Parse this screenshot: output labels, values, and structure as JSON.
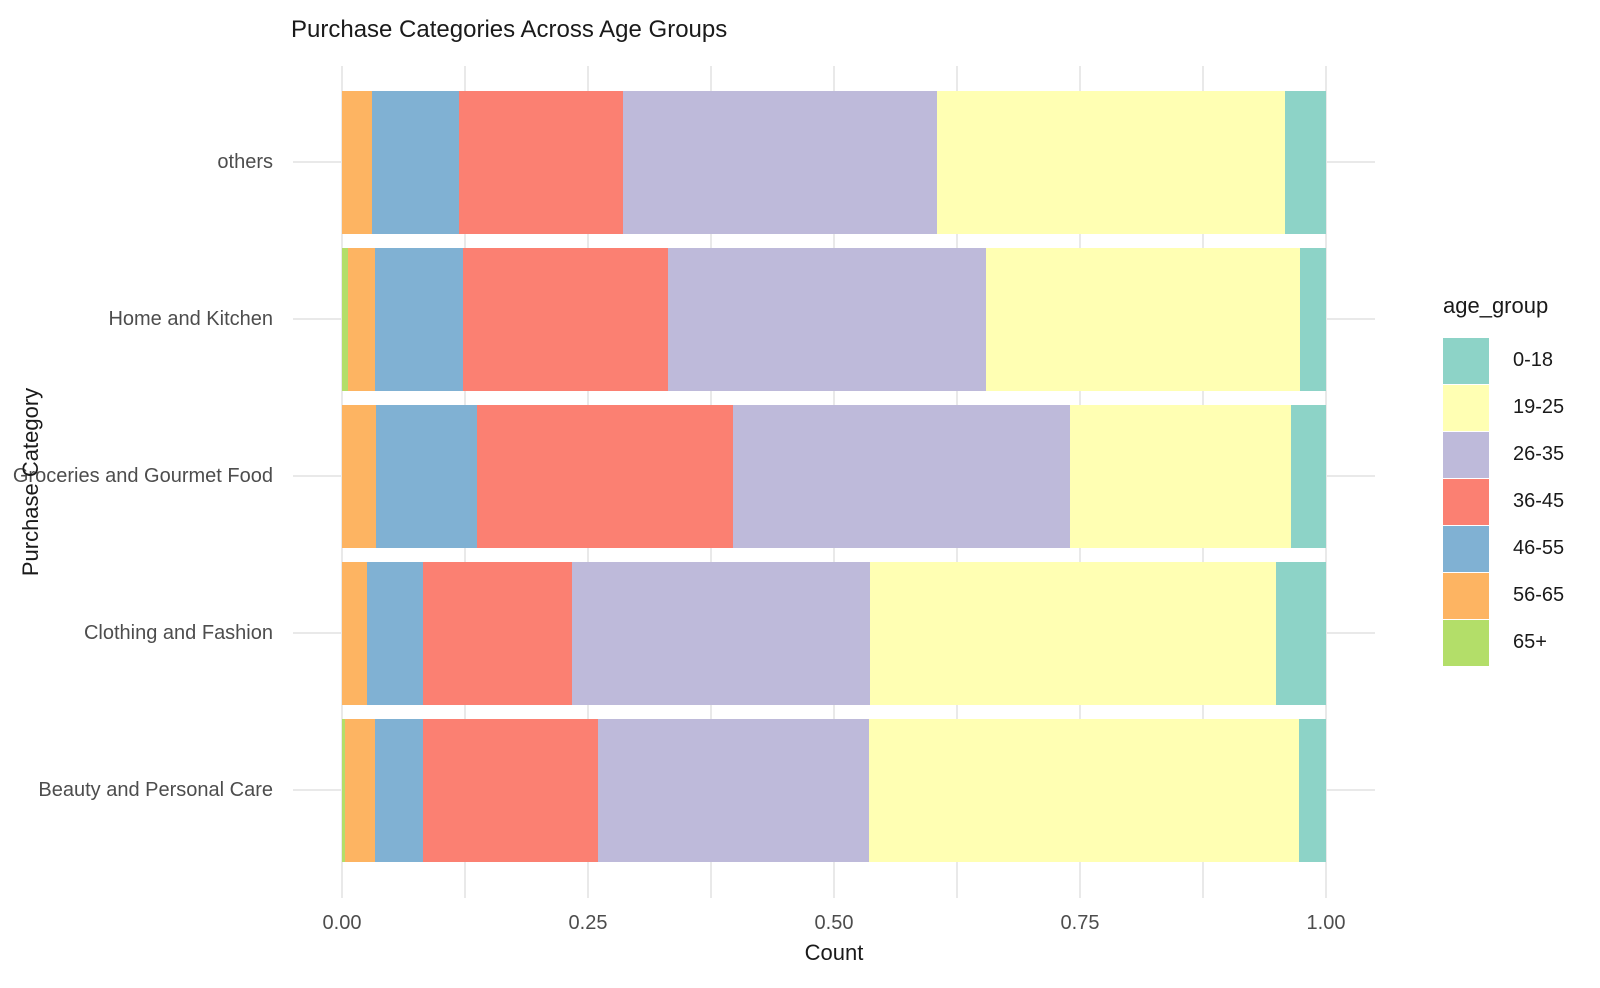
{
  "page": {
    "background_color": "#ffffff",
    "text_color_axis": "#4d4d4d",
    "text_color_title": "#1a1a1a",
    "gridline_color": "#e9e9e9"
  },
  "chart_data": {
    "type": "bar",
    "orientation": "horizontal",
    "stacked": true,
    "normalized": true,
    "title": "Purchase Categories Across Age Groups",
    "xlabel": "Count",
    "ylabel": "Purchase Category",
    "xlim": [
      0,
      1
    ],
    "x_tick_labels": [
      "0.00",
      "0.25",
      "0.50",
      "0.75",
      "1.00"
    ],
    "x_tick_values": [
      0,
      0.25,
      0.5,
      0.75,
      1.0
    ],
    "x_minor_tick_values": [
      0.125,
      0.375,
      0.625,
      0.875
    ],
    "grid": true,
    "categories_top_to_bottom": [
      "others",
      "Home and Kitchen",
      "Groceries and Gourmet Food",
      "Clothing and Fashion",
      "Beauty and Personal Care"
    ],
    "stack_order_left_to_right": [
      "65+",
      "56-65",
      "46-55",
      "36-45",
      "26-35",
      "19-25",
      "0-18"
    ],
    "legend": {
      "title": "age_group",
      "position": "right",
      "entries": [
        {
          "label": "0-18",
          "color": "#8dd3c7"
        },
        {
          "label": "19-25",
          "color": "#ffffb3"
        },
        {
          "label": "26-35",
          "color": "#bebada"
        },
        {
          "label": "36-45",
          "color": "#fb8072"
        },
        {
          "label": "46-55",
          "color": "#80b1d3"
        },
        {
          "label": "56-65",
          "color": "#fdb462"
        },
        {
          "label": "65+",
          "color": "#b3de69"
        }
      ]
    },
    "series": [
      {
        "name": "0-18",
        "color": "#8dd3c7",
        "values": [
          0.042,
          0.026,
          0.036,
          0.051,
          0.027
        ]
      },
      {
        "name": "19-25",
        "color": "#ffffb3",
        "values": [
          0.353,
          0.319,
          0.224,
          0.412,
          0.437
        ]
      },
      {
        "name": "26-35",
        "color": "#bebada",
        "values": [
          0.319,
          0.324,
          0.343,
          0.303,
          0.276
        ]
      },
      {
        "name": "36-45",
        "color": "#fb8072",
        "values": [
          0.167,
          0.208,
          0.26,
          0.152,
          0.178
        ]
      },
      {
        "name": "46-55",
        "color": "#80b1d3",
        "values": [
          0.089,
          0.089,
          0.102,
          0.057,
          0.048
        ]
      },
      {
        "name": "56-65",
        "color": "#fdb462",
        "values": [
          0.03,
          0.028,
          0.035,
          0.025,
          0.031
        ]
      },
      {
        "name": "65+",
        "color": "#b3de69",
        "values": [
          0.0,
          0.006,
          0.0,
          0.0,
          0.003
        ]
      }
    ]
  }
}
